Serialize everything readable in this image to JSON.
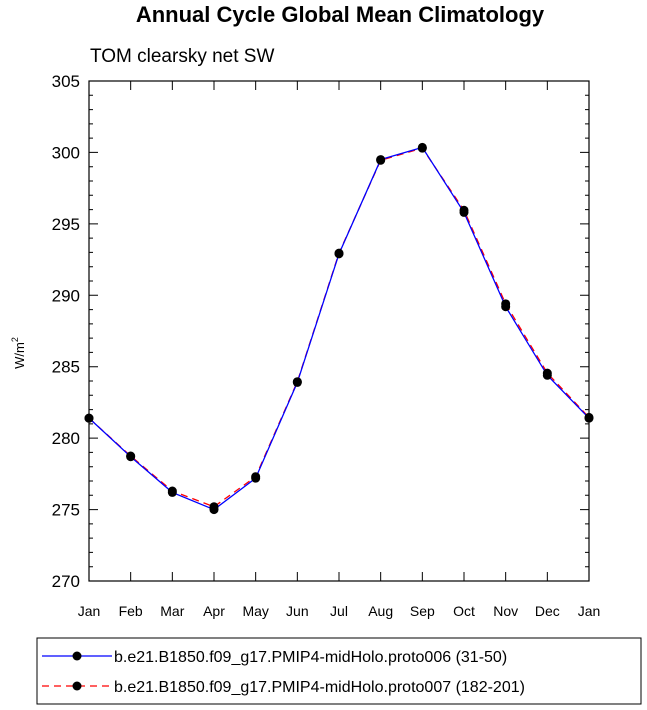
{
  "chart_data": {
    "type": "line",
    "title": "Annual Cycle Global Mean Climatology",
    "subtitle": "TOM clearsky net SW",
    "xlabel": "",
    "ylabel": "W/m",
    "ylabel_superscript": "2",
    "ylim": [
      270,
      305
    ],
    "yticks": [
      "270",
      "275",
      "280",
      "285",
      "290",
      "295",
      "300",
      "305"
    ],
    "categories": [
      "Jan",
      "Feb",
      "Mar",
      "Apr",
      "May",
      "Jun",
      "Jul",
      "Aug",
      "Sep",
      "Oct",
      "Nov",
      "Dec",
      "Jan"
    ],
    "grid": false,
    "legend_position": "bottom",
    "series": [
      {
        "name": "b.e21.B1850.f09_g17.PMIP4-midHolo.proto006 (31-50)",
        "color": "#0000ff",
        "dash": "solid",
        "values": [
          281.4,
          278.7,
          276.2,
          275.0,
          277.2,
          283.9,
          292.9,
          299.5,
          300.35,
          295.8,
          289.2,
          284.4,
          281.4
        ]
      },
      {
        "name": "b.e21.B1850.f09_g17.PMIP4-midHolo.proto007 (182-201)",
        "color": "#ff0000",
        "dash": "dashed",
        "values": [
          281.4,
          278.75,
          276.3,
          275.2,
          277.3,
          283.95,
          292.95,
          299.45,
          300.3,
          295.95,
          289.4,
          284.55,
          281.45
        ]
      }
    ]
  }
}
